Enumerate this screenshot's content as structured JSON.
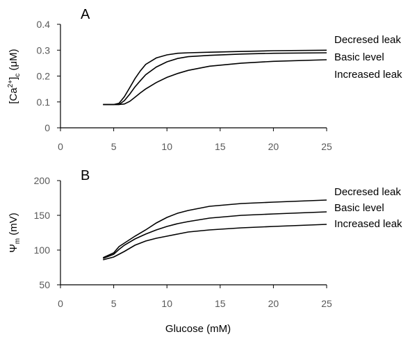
{
  "chart_data": [
    {
      "type": "line",
      "panel": "A",
      "xlabel": "",
      "ylabel": "[Ca2+]c (μM)",
      "xlim": [
        0,
        25
      ],
      "ylim": [
        0,
        0.4
      ],
      "x_ticks": [
        "0",
        "5",
        "10",
        "15",
        "20",
        "25"
      ],
      "y_ticks": [
        "0",
        "0.1",
        "0.2",
        "0.3",
        "0.4"
      ],
      "grid": false,
      "series": [
        {
          "name": "Decresed leak",
          "x": [
            4,
            5,
            5.5,
            6,
            6.5,
            7,
            7.5,
            8,
            9,
            10,
            11,
            12,
            14,
            17,
            20,
            25
          ],
          "y": [
            0.09,
            0.09,
            0.095,
            0.12,
            0.155,
            0.19,
            0.22,
            0.245,
            0.27,
            0.282,
            0.288,
            0.29,
            0.292,
            0.295,
            0.298,
            0.3
          ]
        },
        {
          "name": "Basic level",
          "x": [
            4,
            5,
            5.5,
            6,
            6.5,
            7,
            7.5,
            8,
            9,
            10,
            11,
            12,
            14,
            17,
            20,
            25
          ],
          "y": [
            0.09,
            0.09,
            0.09,
            0.105,
            0.13,
            0.158,
            0.182,
            0.205,
            0.235,
            0.255,
            0.268,
            0.275,
            0.28,
            0.285,
            0.288,
            0.29
          ]
        },
        {
          "name": "Increased leak",
          "x": [
            4,
            5,
            5.5,
            6,
            6.5,
            7,
            7.5,
            8,
            9,
            10,
            11,
            12,
            14,
            17,
            20,
            25
          ],
          "y": [
            0.09,
            0.09,
            0.09,
            0.092,
            0.102,
            0.118,
            0.135,
            0.15,
            0.175,
            0.195,
            0.21,
            0.222,
            0.238,
            0.25,
            0.257,
            0.263
          ]
        }
      ]
    },
    {
      "type": "line",
      "panel": "B",
      "xlabel": "Glucose (mM)",
      "ylabel": "Ψm (mV)",
      "xlim": [
        0,
        25
      ],
      "ylim": [
        50,
        200
      ],
      "x_ticks": [
        "0",
        "5",
        "10",
        "15",
        "20",
        "25"
      ],
      "y_ticks": [
        "50",
        "100",
        "150",
        "200"
      ],
      "grid": false,
      "series": [
        {
          "name": "Decresed leak",
          "x": [
            4,
            5,
            5.5,
            6,
            7,
            8,
            9,
            10,
            11,
            12,
            14,
            17,
            20,
            25
          ],
          "y": [
            89,
            96,
            105,
            110,
            120,
            129,
            139,
            147,
            153,
            157,
            163,
            167,
            169,
            172
          ]
        },
        {
          "name": "Basic level",
          "x": [
            4,
            5,
            5.5,
            6,
            7,
            8,
            9,
            10,
            11,
            12,
            14,
            17,
            20,
            25
          ],
          "y": [
            88,
            94,
            101,
            107,
            116,
            123,
            129,
            134,
            138,
            141,
            146,
            150,
            152,
            155
          ]
        },
        {
          "name": "Increased leak",
          "x": [
            4,
            5,
            5.5,
            6,
            7,
            8,
            9,
            10,
            11,
            12,
            14,
            17,
            20,
            25
          ],
          "y": [
            86,
            90,
            94,
            98,
            107,
            113,
            117,
            120,
            123,
            126,
            129,
            132,
            134,
            137
          ]
        }
      ]
    }
  ]
}
